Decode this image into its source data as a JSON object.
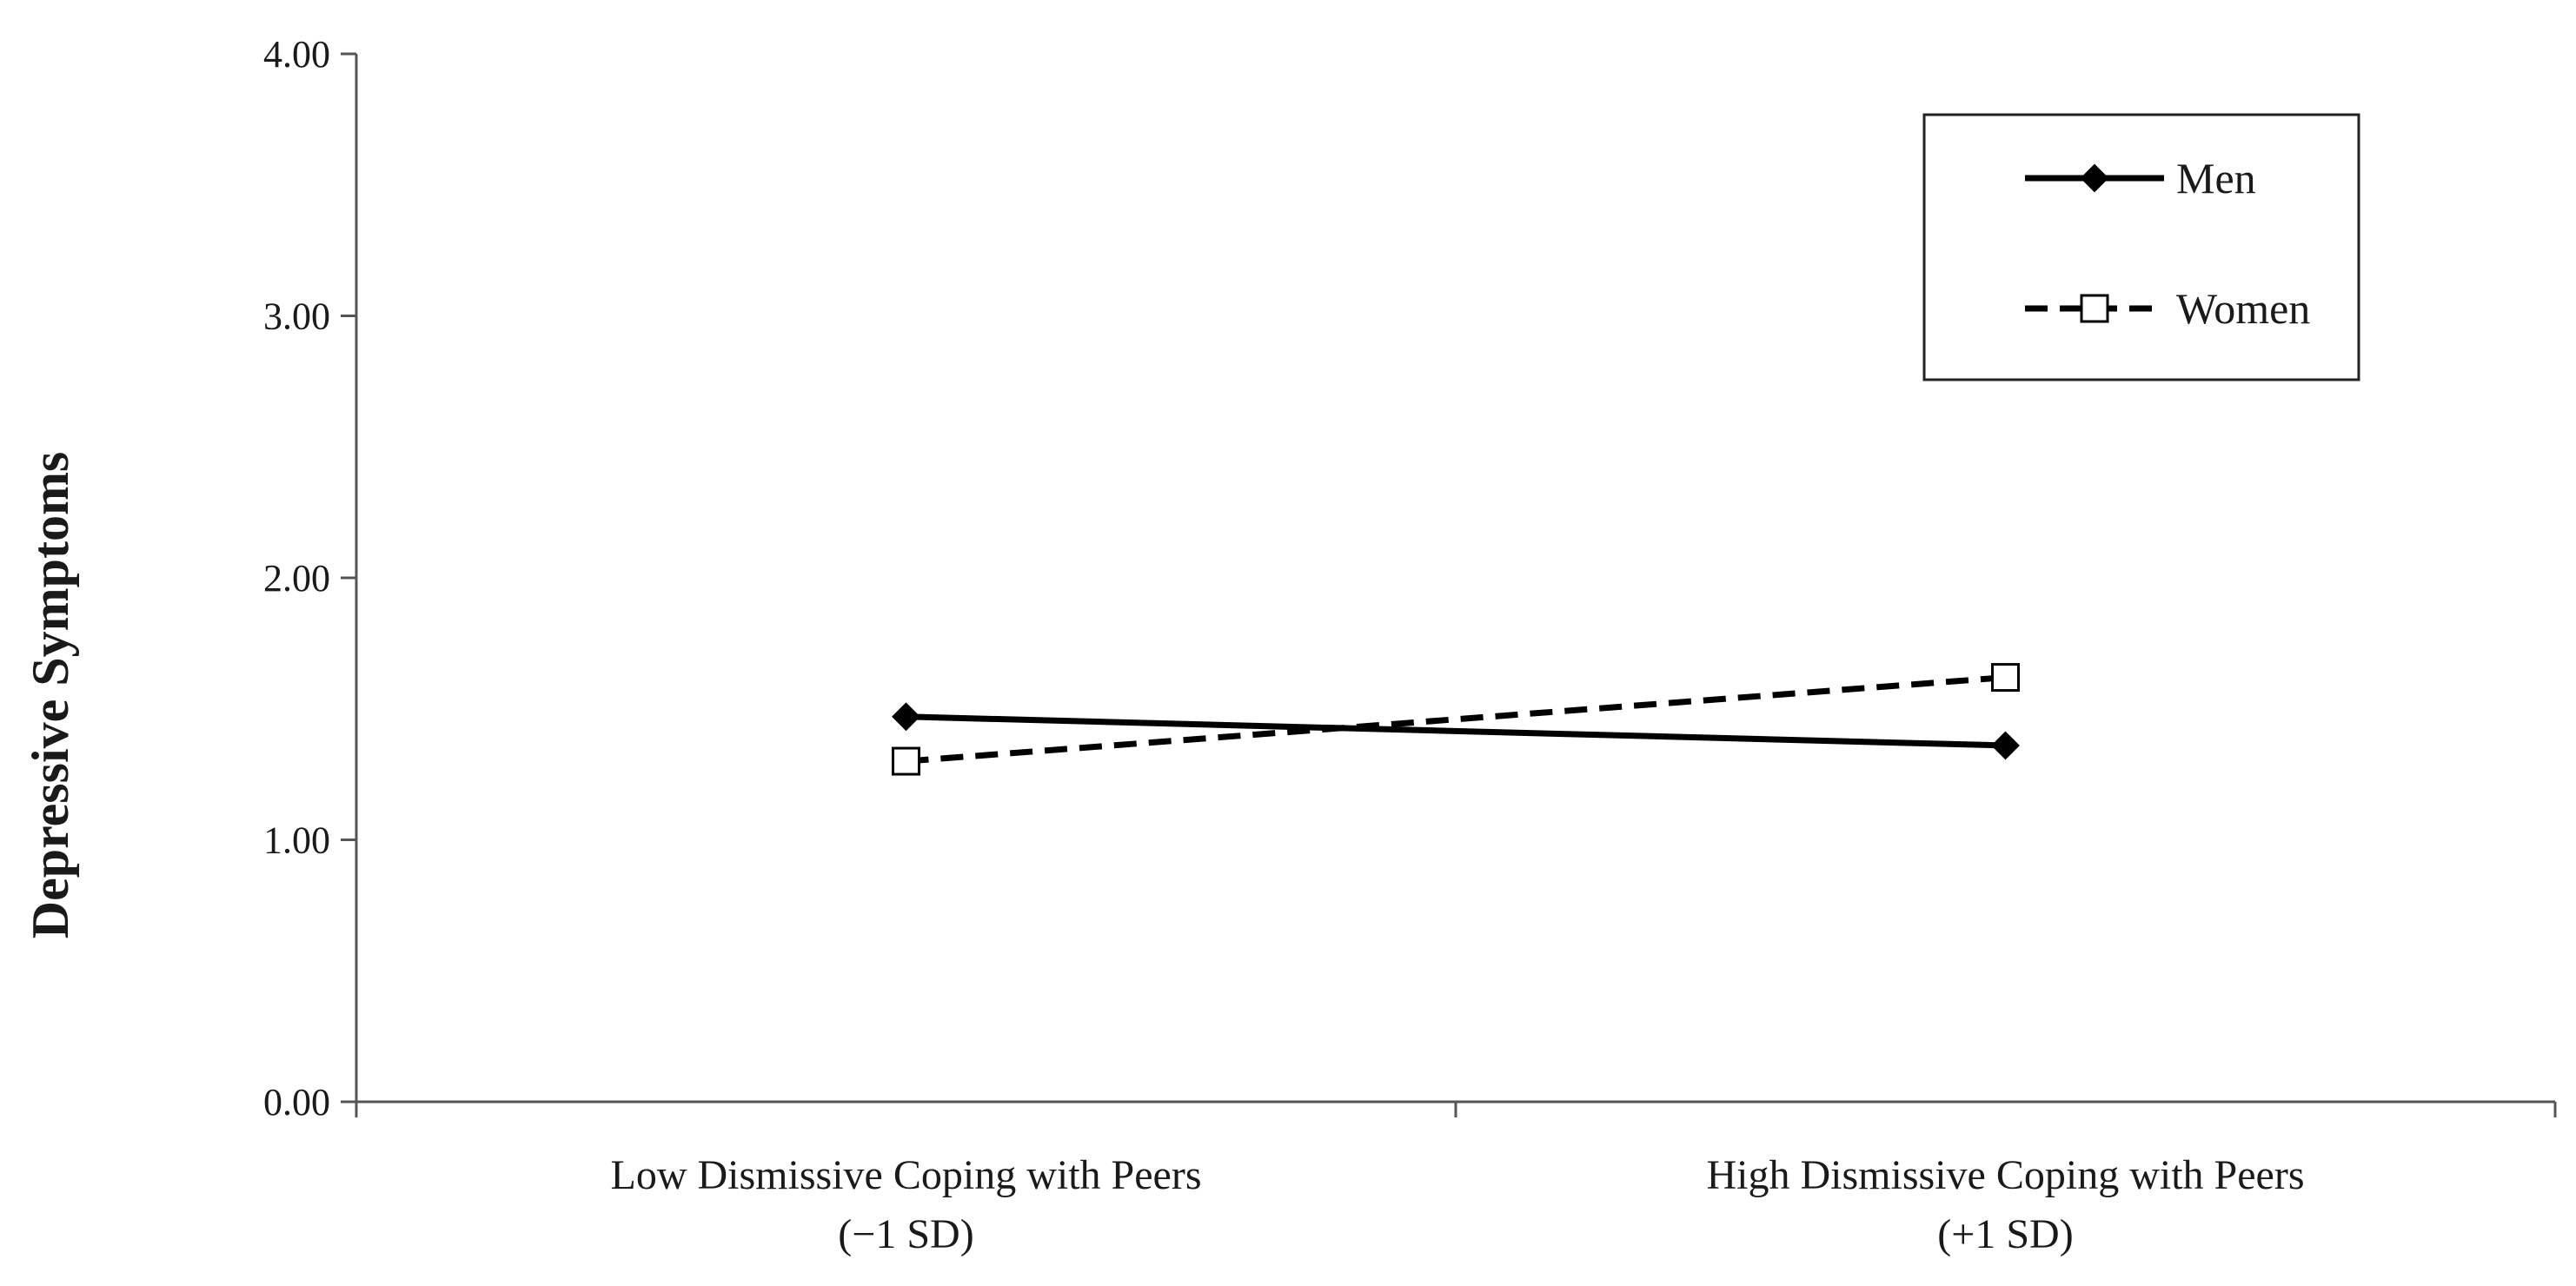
{
  "chart_data": {
    "type": "line",
    "title": "",
    "xlabel": "",
    "ylabel": "Depressive Symptoms",
    "ylim": [
      0,
      4
    ],
    "yticks": [
      "0.00",
      "1.00",
      "2.00",
      "3.00",
      "4.00"
    ],
    "yticks_values": [
      0,
      1,
      2,
      3,
      4
    ],
    "categories": [
      {
        "line1": "Low Dismissive Coping with Peers",
        "line2": "(−1 SD)"
      },
      {
        "line1": "High Dismissive Coping with Peers",
        "line2": "(+1 SD)"
      }
    ],
    "series": [
      {
        "name": "Men",
        "values": [
          1.47,
          1.36
        ],
        "line_style": "solid",
        "marker": "filled-diamond",
        "color": "#000000"
      },
      {
        "name": "Women",
        "values": [
          1.3,
          1.62
        ],
        "line_style": "dashed",
        "marker": "open-square",
        "color": "#000000"
      }
    ],
    "grid": false,
    "legend_position": "top-right"
  }
}
